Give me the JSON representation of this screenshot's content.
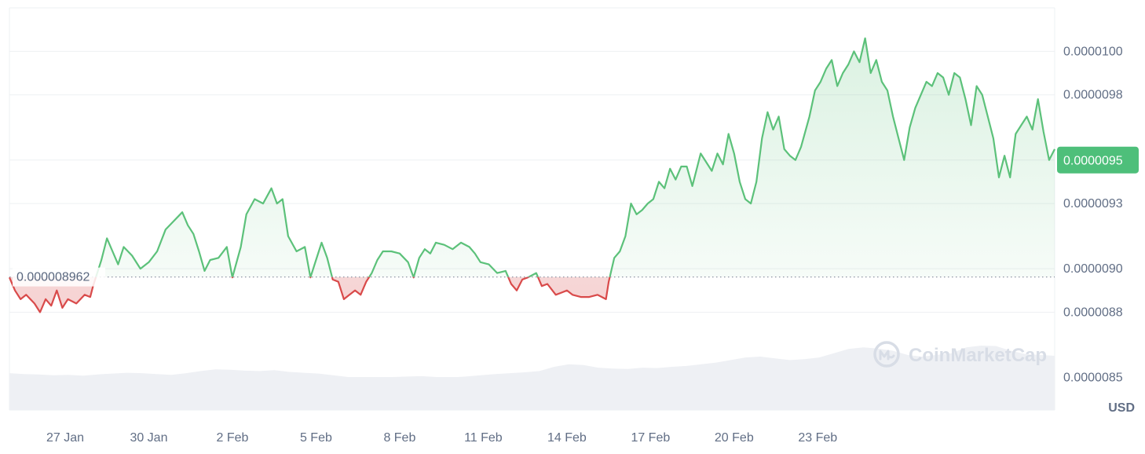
{
  "chart_data": {
    "type": "area",
    "currency": "USD",
    "watermark": "CoinMarketCap",
    "baseline": {
      "value": 8.962e-07,
      "label": "0.000008962"
    },
    "current_price": {
      "value": 9.5e-07,
      "label": "0.0000095"
    },
    "x_labels": [
      "27 Jan",
      "30 Jan",
      "2 Feb",
      "5 Feb",
      "8 Feb",
      "11 Feb",
      "14 Feb",
      "17 Feb",
      "20 Feb",
      "23 Feb"
    ],
    "x_range": [
      "2025-01-25",
      "2025-02-24"
    ],
    "y_ticks": [
      {
        "value": 8.5e-07,
        "label": "0.0000085"
      },
      {
        "value": 8.8e-07,
        "label": "0.0000088"
      },
      {
        "value": 9e-07,
        "label": "0.0000090"
      },
      {
        "value": 9.3e-07,
        "label": "0.0000093"
      },
      {
        "value": 9.5e-07,
        "label": "0.0000095"
      },
      {
        "value": 9.8e-07,
        "label": "0.0000098"
      },
      {
        "value": 1e-06,
        "label": "0.0000100"
      }
    ],
    "ylim": [
      8.35e-07,
      1.02e-06
    ],
    "grid": true,
    "colors": {
      "up": "#5cc17a",
      "down": "#d94a4a",
      "grid": "#eef0f3",
      "volume": "#eef0f4",
      "badge": "#4ebf7a"
    },
    "series": [
      {
        "values": [
          [
            0.0,
            8.96
          ],
          [
            0.2,
            8.9
          ],
          [
            0.4,
            8.86
          ],
          [
            0.6,
            8.88
          ],
          [
            0.9,
            8.84
          ],
          [
            1.1,
            8.8
          ],
          [
            1.3,
            8.86
          ],
          [
            1.5,
            8.83
          ],
          [
            1.7,
            8.9
          ],
          [
            1.9,
            8.82
          ],
          [
            2.1,
            8.86
          ],
          [
            2.4,
            8.84
          ],
          [
            2.7,
            8.88
          ],
          [
            2.9,
            8.87
          ],
          [
            3.0,
            8.92
          ],
          [
            3.3,
            9.04
          ],
          [
            3.5,
            9.14
          ],
          [
            3.7,
            9.08
          ],
          [
            3.9,
            9.02
          ],
          [
            4.1,
            9.1
          ],
          [
            4.4,
            9.06
          ],
          [
            4.7,
            9.0
          ],
          [
            5.0,
            9.03
          ],
          [
            5.3,
            9.08
          ],
          [
            5.6,
            9.18
          ],
          [
            5.9,
            9.22
          ],
          [
            6.2,
            9.26
          ],
          [
            6.4,
            9.2
          ],
          [
            6.6,
            9.16
          ],
          [
            6.8,
            9.08
          ],
          [
            7.0,
            8.99
          ],
          [
            7.2,
            9.04
          ],
          [
            7.5,
            9.05
          ],
          [
            7.8,
            9.1
          ],
          [
            8.0,
            8.96
          ],
          [
            8.3,
            9.1
          ],
          [
            8.5,
            9.25
          ],
          [
            8.8,
            9.32
          ],
          [
            9.1,
            9.3
          ],
          [
            9.4,
            9.37
          ],
          [
            9.6,
            9.3
          ],
          [
            9.8,
            9.32
          ],
          [
            10.0,
            9.15
          ],
          [
            10.3,
            9.08
          ],
          [
            10.6,
            9.1
          ],
          [
            10.8,
            8.96
          ],
          [
            11.0,
            9.04
          ],
          [
            11.2,
            9.12
          ],
          [
            11.4,
            9.05
          ],
          [
            11.6,
            8.95
          ],
          [
            11.8,
            8.94
          ],
          [
            12.0,
            8.86
          ],
          [
            12.2,
            8.88
          ],
          [
            12.4,
            8.9
          ],
          [
            12.6,
            8.88
          ],
          [
            12.8,
            8.94
          ],
          [
            13.0,
            8.98
          ],
          [
            13.2,
            9.04
          ],
          [
            13.4,
            9.08
          ],
          [
            13.7,
            9.08
          ],
          [
            14.0,
            9.07
          ],
          [
            14.3,
            9.03
          ],
          [
            14.5,
            8.96
          ],
          [
            14.7,
            9.05
          ],
          [
            14.9,
            9.09
          ],
          [
            15.1,
            9.07
          ],
          [
            15.3,
            9.12
          ],
          [
            15.6,
            9.11
          ],
          [
            15.9,
            9.09
          ],
          [
            16.2,
            9.12
          ],
          [
            16.5,
            9.1
          ],
          [
            16.7,
            9.07
          ],
          [
            16.9,
            9.03
          ],
          [
            17.2,
            9.02
          ],
          [
            17.5,
            8.98
          ],
          [
            17.8,
            8.99
          ],
          [
            18.0,
            8.93
          ],
          [
            18.2,
            8.9
          ],
          [
            18.4,
            8.95
          ],
          [
            18.6,
            8.96
          ],
          [
            18.9,
            8.98
          ],
          [
            19.1,
            8.92
          ],
          [
            19.3,
            8.93
          ],
          [
            19.6,
            8.88
          ],
          [
            19.8,
            8.89
          ],
          [
            20.0,
            8.9
          ],
          [
            20.2,
            8.88
          ],
          [
            20.5,
            8.87
          ],
          [
            20.8,
            8.87
          ],
          [
            21.1,
            8.88
          ],
          [
            21.4,
            8.86
          ],
          [
            21.5,
            8.94
          ],
          [
            21.7,
            9.05
          ],
          [
            21.9,
            9.08
          ],
          [
            22.1,
            9.15
          ],
          [
            22.3,
            9.3
          ],
          [
            22.5,
            9.25
          ],
          [
            22.7,
            9.27
          ],
          [
            22.9,
            9.3
          ],
          [
            23.1,
            9.32
          ],
          [
            23.3,
            9.4
          ],
          [
            23.5,
            9.37
          ],
          [
            23.7,
            9.46
          ],
          [
            23.9,
            9.41
          ],
          [
            24.1,
            9.47
          ],
          [
            24.3,
            9.47
          ],
          [
            24.5,
            9.38
          ],
          [
            24.8,
            9.53
          ],
          [
            25.0,
            9.49
          ],
          [
            25.2,
            9.45
          ],
          [
            25.4,
            9.53
          ],
          [
            25.6,
            9.48
          ],
          [
            25.8,
            9.62
          ],
          [
            26.0,
            9.53
          ],
          [
            26.2,
            9.4
          ],
          [
            26.4,
            9.32
          ],
          [
            26.6,
            9.3
          ],
          [
            26.8,
            9.4
          ],
          [
            27.0,
            9.6
          ],
          [
            27.2,
            9.72
          ],
          [
            27.4,
            9.64
          ],
          [
            27.6,
            9.7
          ],
          [
            27.8,
            9.55
          ],
          [
            28.0,
            9.52
          ],
          [
            28.2,
            9.5
          ],
          [
            28.4,
            9.56
          ],
          [
            28.7,
            9.7
          ],
          [
            28.9,
            9.82
          ],
          [
            29.1,
            9.86
          ],
          [
            29.3,
            9.92
          ],
          [
            29.5,
            9.96
          ],
          [
            29.7,
            9.84
          ],
          [
            29.9,
            9.9
          ],
          [
            30.1,
            9.94
          ],
          [
            30.3,
            10.0
          ],
          [
            30.5,
            9.95
          ],
          [
            30.7,
            10.06
          ],
          [
            30.9,
            9.9
          ],
          [
            31.1,
            9.96
          ],
          [
            31.3,
            9.86
          ],
          [
            31.5,
            9.82
          ],
          [
            31.7,
            9.7
          ],
          [
            31.9,
            9.6
          ],
          [
            32.1,
            9.5
          ],
          [
            32.3,
            9.65
          ],
          [
            32.5,
            9.74
          ],
          [
            32.7,
            9.8
          ],
          [
            32.9,
            9.86
          ],
          [
            33.1,
            9.84
          ],
          [
            33.3,
            9.9
          ],
          [
            33.5,
            9.88
          ],
          [
            33.7,
            9.8
          ],
          [
            33.9,
            9.9
          ],
          [
            34.1,
            9.88
          ],
          [
            34.3,
            9.78
          ],
          [
            34.5,
            9.66
          ],
          [
            34.7,
            9.84
          ],
          [
            34.9,
            9.8
          ],
          [
            35.1,
            9.7
          ],
          [
            35.3,
            9.6
          ],
          [
            35.5,
            9.42
          ],
          [
            35.7,
            9.52
          ],
          [
            35.9,
            9.42
          ],
          [
            36.1,
            9.62
          ],
          [
            36.3,
            9.66
          ],
          [
            36.5,
            9.7
          ],
          [
            36.7,
            9.64
          ],
          [
            36.9,
            9.78
          ],
          [
            37.1,
            9.63
          ],
          [
            37.3,
            9.5
          ],
          [
            37.5,
            9.55
          ]
        ]
      }
    ],
    "volume": [
      0.35,
      0.33,
      0.32,
      0.3,
      0.31,
      0.29,
      0.32,
      0.34,
      0.36,
      0.35,
      0.33,
      0.31,
      0.35,
      0.4,
      0.44,
      0.43,
      0.41,
      0.4,
      0.42,
      0.38,
      0.36,
      0.34,
      0.3,
      0.26,
      0.24,
      0.25,
      0.26,
      0.27,
      0.28,
      0.26,
      0.25,
      0.27,
      0.3,
      0.33,
      0.35,
      0.37,
      0.4,
      0.5,
      0.56,
      0.54,
      0.48,
      0.46,
      0.45,
      0.48,
      0.47,
      0.5,
      0.52,
      0.56,
      0.6,
      0.66,
      0.72,
      0.74,
      0.7,
      0.66,
      0.68,
      0.72,
      0.82,
      0.92,
      0.96,
      0.93,
      0.88,
      0.78,
      0.74,
      0.78,
      0.82,
      0.96,
      1.0,
      0.99,
      0.88,
      0.8,
      0.78,
      0.76
    ]
  }
}
